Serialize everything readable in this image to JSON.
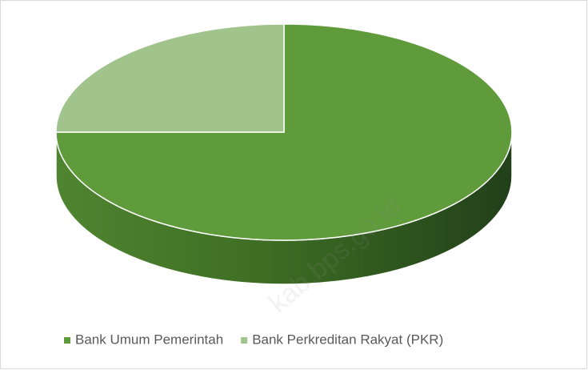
{
  "chart_data": {
    "type": "pie",
    "categories": [
      "Bank Umum Pemerintah",
      "Bank Perkreditan Rakyat (PKR)"
    ],
    "values": [
      75,
      25
    ],
    "colors": [
      "#5f9a3b",
      "#a1c48d"
    ],
    "legend": "bottom",
    "watermark": "kab.bps.go.id"
  }
}
